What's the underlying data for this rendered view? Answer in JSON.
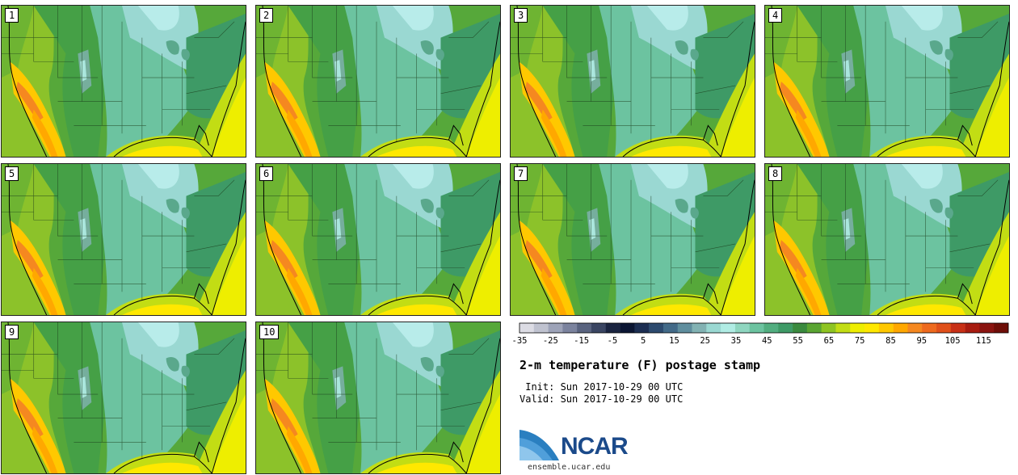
{
  "title": "2-m temperature (F) postage stamp",
  "init_line": " Init: Sun 2017-10-29 00 UTC",
  "valid_line": "Valid: Sun 2017-10-29 00 UTC",
  "logo": {
    "text": "NCAR",
    "url": "ensemble.ucar.edu"
  },
  "members": [
    "1",
    "2",
    "3",
    "4",
    "5",
    "6",
    "7",
    "8",
    "9",
    "10"
  ],
  "colorbar": {
    "ticks": [
      "-35",
      "-25",
      "-15",
      "-5",
      "5",
      "15",
      "25",
      "35",
      "45",
      "55",
      "65",
      "75",
      "85",
      "95",
      "105",
      "115"
    ],
    "colors": [
      "#dcdce4",
      "#bfc2cf",
      "#9da3b8",
      "#7b839e",
      "#59637f",
      "#3a4562",
      "#1a2440",
      "#0b1633",
      "#1c2e52",
      "#2c4a6e",
      "#426a88",
      "#5f8e9e",
      "#82b2b3",
      "#9ad8d2",
      "#b0ece4",
      "#8fd6c0",
      "#6cc3a0",
      "#52ae80",
      "#3e9a66",
      "#3a8a3e",
      "#5aa532",
      "#8ec422",
      "#c2dd14",
      "#eeee00",
      "#ffe800",
      "#ffc800",
      "#ffa800",
      "#f58820",
      "#ee6a1e",
      "#e0501a",
      "#c83016",
      "#a81c10",
      "#8a1410",
      "#6e0e08"
    ]
  }
}
